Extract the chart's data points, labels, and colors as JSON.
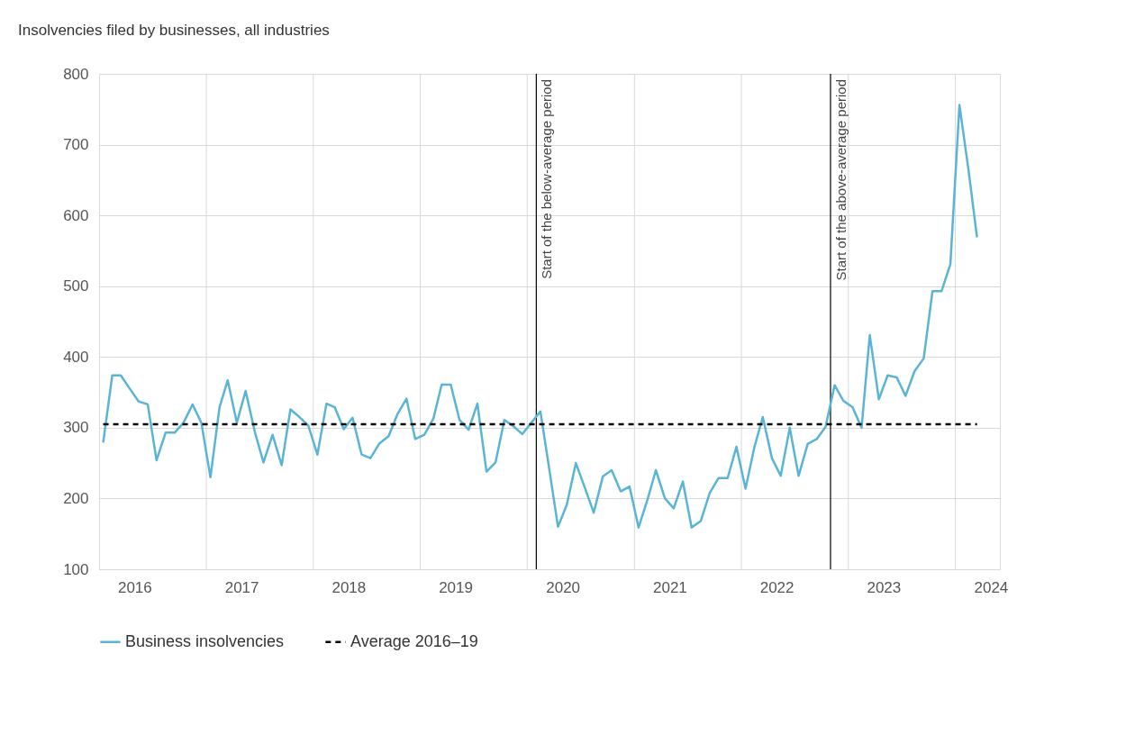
{
  "chart_data": {
    "type": "line",
    "title": "Insolvencies filed by businesses, all industries",
    "x": [
      "2016-01-15",
      "2016-02-15",
      "2016-03-15",
      "2016-04-15",
      "2016-05-15",
      "2016-06-15",
      "2016-07-15",
      "2016-08-15",
      "2016-09-15",
      "2016-10-15",
      "2016-11-15",
      "2016-12-15",
      "2017-01-15",
      "2017-02-15",
      "2017-03-15",
      "2017-04-15",
      "2017-05-15",
      "2017-06-15",
      "2017-07-15",
      "2017-08-15",
      "2017-09-15",
      "2017-10-15",
      "2017-11-15",
      "2017-12-15",
      "2018-01-15",
      "2018-02-15",
      "2018-03-15",
      "2018-04-15",
      "2018-05-15",
      "2018-06-15",
      "2018-07-15",
      "2018-08-15",
      "2018-09-15",
      "2018-10-15",
      "2018-11-15",
      "2018-12-15",
      "2019-01-15",
      "2019-02-15",
      "2019-03-15",
      "2019-04-15",
      "2019-05-15",
      "2019-06-15",
      "2019-07-15",
      "2019-08-15",
      "2019-09-15",
      "2019-10-15",
      "2019-11-15",
      "2019-12-15",
      "2020-01-15",
      "2020-02-15",
      "2020-03-15",
      "2020-04-15",
      "2020-05-15",
      "2020-06-15",
      "2020-07-15",
      "2020-08-15",
      "2020-09-15",
      "2020-10-15",
      "2020-11-15",
      "2020-12-15",
      "2021-01-15",
      "2021-02-15",
      "2021-03-15",
      "2021-04-15",
      "2021-05-15",
      "2021-06-15",
      "2021-07-15",
      "2021-08-15",
      "2021-09-15",
      "2021-10-15",
      "2021-11-15",
      "2021-12-15",
      "2022-01-15",
      "2022-02-15",
      "2022-03-15",
      "2022-04-15",
      "2022-05-15",
      "2022-06-15",
      "2022-07-15",
      "2022-08-15",
      "2022-09-15",
      "2022-10-15",
      "2022-11-15",
      "2022-12-15",
      "2023-01-15",
      "2023-02-15",
      "2023-03-15",
      "2023-04-15",
      "2023-05-15",
      "2023-06-15",
      "2023-07-15",
      "2023-08-15",
      "2023-09-15",
      "2023-10-15",
      "2023-11-15",
      "2023-12-15",
      "2024-01-15",
      "2024-02-15",
      "2024-03-15"
    ],
    "series": [
      {
        "name": "Business insolvencies",
        "color": "#5ab4d6",
        "line_style": "solid",
        "values": [
          279,
          374,
          374,
          355,
          337,
          333,
          254,
          293,
          293,
          307,
          333,
          307,
          230,
          329,
          367,
          307,
          352,
          295,
          251,
          290,
          247,
          326,
          315,
          303,
          262,
          334,
          329,
          298,
          314,
          262,
          257,
          278,
          288,
          319,
          341,
          284,
          290,
          313,
          361,
          361,
          311,
          297,
          334,
          238,
          251,
          311,
          302,
          291,
          307,
          323,
          245,
          160,
          191,
          250,
          216,
          180,
          231,
          240,
          210,
          217,
          159,
          199,
          240,
          200,
          186,
          224,
          159,
          168,
          208,
          229,
          229,
          273,
          214,
          274,
          315,
          257,
          232,
          300,
          232,
          277,
          284,
          301,
          360,
          338,
          329,
          300,
          431,
          340,
          374,
          371,
          345,
          380,
          398,
          493,
          493,
          531,
          756,
          664,
          569
        ]
      },
      {
        "name": "Average 2016–19",
        "color": "#000000",
        "line_style": "dashed",
        "x": [
          "2016-01-15",
          "2024-03-15"
        ],
        "values": [
          305,
          305
        ]
      }
    ],
    "xlim": [
      "2016-01-01",
      "2024-06-01"
    ],
    "xticks": [
      {
        "value": "2016-05-01",
        "label": "2016"
      },
      {
        "value": "2017-05-01",
        "label": "2017"
      },
      {
        "value": "2018-05-01",
        "label": "2018"
      },
      {
        "value": "2019-05-01",
        "label": "2019"
      },
      {
        "value": "2020-05-01",
        "label": "2020"
      },
      {
        "value": "2021-05-01",
        "label": "2021"
      },
      {
        "value": "2022-05-01",
        "label": "2022"
      },
      {
        "value": "2023-05-01",
        "label": "2023"
      },
      {
        "value": "2024-05-01",
        "label": "2024"
      },
      {
        "value": "2017-01-01",
        "label": null
      },
      {
        "value": "2018-01-01",
        "label": null
      },
      {
        "value": "2019-01-01",
        "label": null
      },
      {
        "value": "2020-01-01",
        "label": null
      },
      {
        "value": "2021-01-01",
        "label": null
      },
      {
        "value": "2022-01-01",
        "label": null
      },
      {
        "value": "2023-01-01",
        "label": null
      },
      {
        "value": "2024-01-01",
        "label": null
      }
    ],
    "ylim": [
      100,
      800
    ],
    "yticks": [
      100,
      200,
      300,
      400,
      500,
      600,
      700,
      800
    ],
    "ref_lines": [
      {
        "axis": "x",
        "value": "2020-02-01",
        "label": "Start of the below-average period",
        "color": "#000000"
      },
      {
        "axis": "x",
        "value": "2022-11-01",
        "label": "Start of the above-average period",
        "color": "#000000"
      }
    ],
    "grid": true,
    "legend": "bottom"
  }
}
